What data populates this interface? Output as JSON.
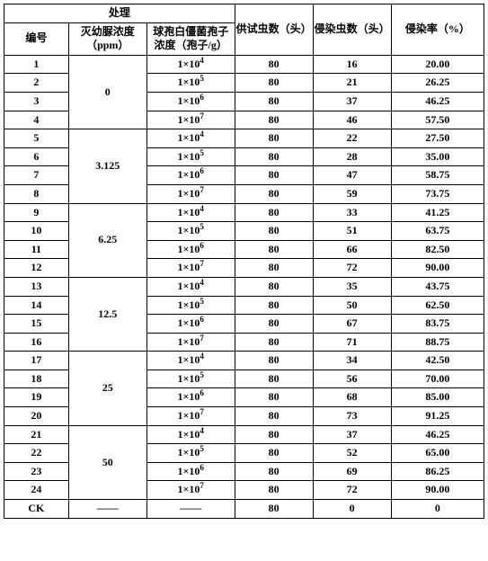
{
  "headers": {
    "treatment": "处理",
    "id": "编号",
    "urea_conc": "灭幼脲浓度（ppm）",
    "spore_conc": "球孢白僵菌孢子浓度（孢子/g）",
    "test_count": "供试虫数（头）",
    "infect_count": "侵染虫数（头）",
    "infect_rate": "侵染率（%）"
  },
  "spore_labels": {
    "e4": "1×10",
    "e5": "1×10",
    "e6": "1×10",
    "e7": "1×10"
  },
  "groups": [
    {
      "urea": "0",
      "rows": [
        {
          "id": "1",
          "spore": "e4",
          "test": "80",
          "infect": "16",
          "rate": "20.00"
        },
        {
          "id": "2",
          "spore": "e5",
          "test": "80",
          "infect": "21",
          "rate": "26.25"
        },
        {
          "id": "3",
          "spore": "e6",
          "test": "80",
          "infect": "37",
          "rate": "46.25"
        },
        {
          "id": "4",
          "spore": "e7",
          "test": "80",
          "infect": "46",
          "rate": "57.50"
        }
      ]
    },
    {
      "urea": "3.125",
      "rows": [
        {
          "id": "5",
          "spore": "e4",
          "test": "80",
          "infect": "22",
          "rate": "27.50"
        },
        {
          "id": "6",
          "spore": "e5",
          "test": "80",
          "infect": "28",
          "rate": "35.00"
        },
        {
          "id": "7",
          "spore": "e6",
          "test": "80",
          "infect": "47",
          "rate": "58.75"
        },
        {
          "id": "8",
          "spore": "e7",
          "test": "80",
          "infect": "59",
          "rate": "73.75"
        }
      ]
    },
    {
      "urea": "6.25",
      "rows": [
        {
          "id": "9",
          "spore": "e4",
          "test": "80",
          "infect": "33",
          "rate": "41.25"
        },
        {
          "id": "10",
          "spore": "e5",
          "test": "80",
          "infect": "51",
          "rate": "63.75"
        },
        {
          "id": "11",
          "spore": "e6",
          "test": "80",
          "infect": "66",
          "rate": "82.50"
        },
        {
          "id": "12",
          "spore": "e7",
          "test": "80",
          "infect": "72",
          "rate": "90.00"
        }
      ]
    },
    {
      "urea": "12.5",
      "rows": [
        {
          "id": "13",
          "spore": "e4",
          "test": "80",
          "infect": "35",
          "rate": "43.75"
        },
        {
          "id": "14",
          "spore": "e5",
          "test": "80",
          "infect": "50",
          "rate": "62.50"
        },
        {
          "id": "15",
          "spore": "e6",
          "test": "80",
          "infect": "67",
          "rate": "83.75"
        },
        {
          "id": "16",
          "spore": "e7",
          "test": "80",
          "infect": "71",
          "rate": "88.75"
        }
      ]
    },
    {
      "urea": "25",
      "rows": [
        {
          "id": "17",
          "spore": "e4",
          "test": "80",
          "infect": "34",
          "rate": "42.50"
        },
        {
          "id": "18",
          "spore": "e5",
          "test": "80",
          "infect": "56",
          "rate": "70.00"
        },
        {
          "id": "19",
          "spore": "e6",
          "test": "80",
          "infect": "68",
          "rate": "85.00"
        },
        {
          "id": "20",
          "spore": "e7",
          "test": "80",
          "infect": "73",
          "rate": "91.25"
        }
      ]
    },
    {
      "urea": "50",
      "rows": [
        {
          "id": "21",
          "spore": "e4",
          "test": "80",
          "infect": "37",
          "rate": "46.25"
        },
        {
          "id": "22",
          "spore": "e5",
          "test": "80",
          "infect": "52",
          "rate": "65.00"
        },
        {
          "id": "23",
          "spore": "e6",
          "test": "80",
          "infect": "69",
          "rate": "86.25"
        },
        {
          "id": "24",
          "spore": "e7",
          "test": "80",
          "infect": "72",
          "rate": "90.00"
        }
      ]
    }
  ],
  "ck": {
    "id": "CK",
    "urea": "——",
    "spore": "——",
    "test": "80",
    "infect": "0",
    "rate": "0"
  },
  "exponents": {
    "e4": "4",
    "e5": "5",
    "e6": "6",
    "e7": "7"
  }
}
